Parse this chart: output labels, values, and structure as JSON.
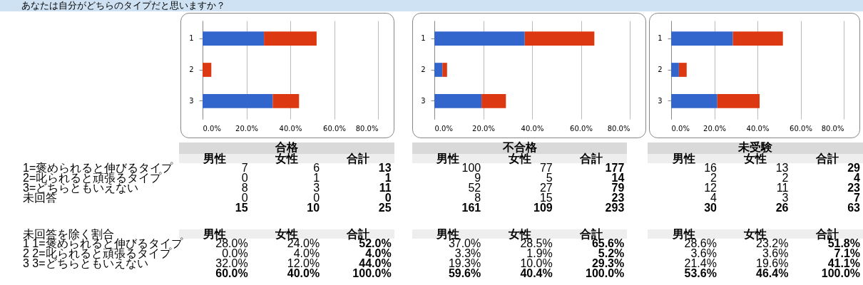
{
  "chart_data": [
    {
      "type": "bar",
      "title": "あなたは自分がどちらのタイプだと思いますか？",
      "orientation": "horizontal",
      "stacked": true,
      "categories": [
        "1",
        "2",
        "3"
      ],
      "series": [
        {
          "color": "#3366cc",
          "values": [
            28.0,
            0.0,
            32.0
          ]
        },
        {
          "color": "#dc3912",
          "values": [
            24.0,
            4.0,
            12.0
          ]
        }
      ],
      "xlim": [
        0,
        80
      ],
      "xticks": [
        {
          "value": 0,
          "label": "0.0%"
        },
        {
          "value": 20,
          "label": "20.0%"
        },
        {
          "value": 40,
          "label": "40.0%"
        },
        {
          "value": 60,
          "label": "60.0%"
        },
        {
          "value": 80,
          "label": "80.0%"
        }
      ],
      "grid": "x"
    },
    {
      "type": "bar",
      "orientation": "horizontal",
      "stacked": true,
      "categories": [
        "1",
        "2",
        "3"
      ],
      "series": [
        {
          "color": "#3366cc",
          "values": [
            37.0,
            3.3,
            19.3
          ]
        },
        {
          "color": "#dc3912",
          "values": [
            28.5,
            1.9,
            10.0
          ]
        }
      ],
      "xlim": [
        0,
        80
      ],
      "xticks": [
        {
          "value": 0,
          "label": "0.0%"
        },
        {
          "value": 20,
          "label": "20.0%"
        },
        {
          "value": 40,
          "label": "40.0%"
        },
        {
          "value": 60,
          "label": "60.0%"
        },
        {
          "value": 80,
          "label": "80.0%"
        }
      ],
      "grid": "x"
    },
    {
      "type": "bar",
      "orientation": "horizontal",
      "stacked": true,
      "categories": [
        "1",
        "2",
        "3"
      ],
      "series": [
        {
          "color": "#3366cc",
          "values": [
            28.6,
            3.6,
            21.4
          ]
        },
        {
          "color": "#dc3912",
          "values": [
            23.2,
            3.6,
            19.6
          ]
        }
      ],
      "xlim": [
        0,
        80
      ],
      "xticks": [
        {
          "value": 0,
          "label": "0.0%"
        },
        {
          "value": 20,
          "label": "20.0%"
        },
        {
          "value": 40,
          "label": "40.0%"
        },
        {
          "value": 60,
          "label": "60.0%"
        },
        {
          "value": 80,
          "label": "80.0%"
        }
      ],
      "grid": "x"
    },
    {
      "type": "other",
      "annotations": [
        "合格",
        "不合格",
        "未受験"
      ],
      "data_labels": true,
      "categories": [
        "1=褒められると伸びるタイプ",
        "2=叱られると頑張るタイプ",
        "3=どちらともいえない",
        "未回答"
      ],
      "series": [
        {
          "name": "男性",
          "values": [
            7,
            0,
            8,
            0
          ]
        },
        {
          "name": "女性",
          "values": [
            6,
            1,
            3,
            0
          ]
        },
        {
          "name": "合計",
          "values": [
            13,
            1,
            11,
            0
          ]
        },
        {
          "name": "男性",
          "values": [
            100,
            9,
            52,
            8
          ]
        },
        {
          "name": "女性",
          "values": [
            77,
            5,
            27,
            15
          ]
        },
        {
          "name": "合計",
          "values": [
            177,
            14,
            79,
            23
          ]
        },
        {
          "name": "男性",
          "values": [
            16,
            2,
            12,
            4
          ]
        },
        {
          "name": "女性",
          "values": [
            13,
            2,
            11,
            3
          ]
        },
        {
          "name": "合計",
          "values": [
            29,
            4,
            23,
            7
          ]
        }
      ],
      "totals": [
        "15",
        "10",
        "25",
        "161",
        "109",
        "293",
        "30",
        "26",
        "63"
      ]
    },
    {
      "type": "other",
      "ylabel": "未回答を除く割合",
      "categories": [
        "1 1=褒められると伸びるタイプ",
        "2 2=叱られると頑張るタイプ",
        "3 3=どちらともいえない"
      ],
      "series": [
        {
          "name": "男性",
          "values": [
            28.0,
            0.0,
            32.0
          ],
          "value_labels": [
            "28.0%",
            "0.0%",
            "32.0%"
          ]
        },
        {
          "name": "女性",
          "values": [
            24.0,
            4.0,
            12.0
          ],
          "value_labels": [
            "24.0%",
            "4.0%",
            "12.0%"
          ]
        },
        {
          "name": "合計",
          "values": [
            52.0,
            4.0,
            44.0
          ],
          "value_labels": [
            "52.0%",
            "4.0%",
            "44.0%"
          ]
        },
        {
          "name": "男性",
          "values": [
            37.0,
            3.3,
            19.3
          ],
          "value_labels": [
            "37.0%",
            "3.3%",
            "19.3%"
          ]
        },
        {
          "name": "女性",
          "values": [
            28.5,
            1.9,
            10.0
          ],
          "value_labels": [
            "28.5%",
            "1.9%",
            "10.0%"
          ]
        },
        {
          "name": "合計",
          "values": [
            65.6,
            5.2,
            29.3
          ],
          "value_labels": [
            "65.6%",
            "5.2%",
            "29.3%"
          ]
        },
        {
          "name": "男性",
          "values": [
            28.6,
            3.6,
            21.4
          ],
          "value_labels": [
            "28.6%",
            "3.6%",
            "21.4%"
          ]
        },
        {
          "name": "女性",
          "values": [
            23.2,
            3.6,
            19.6
          ],
          "value_labels": [
            "23.2%",
            "3.6%",
            "19.6%"
          ]
        },
        {
          "name": "合計",
          "values": [
            51.8,
            7.1,
            41.1
          ],
          "value_labels": [
            "51.8%",
            "7.1%",
            "41.1%"
          ]
        }
      ],
      "totals": [
        "60.0%",
        "40.0%",
        "100.0%",
        "59.6%",
        "40.4%",
        "100.0%",
        "53.6%",
        "46.4%",
        "100.0%"
      ]
    }
  ]
}
